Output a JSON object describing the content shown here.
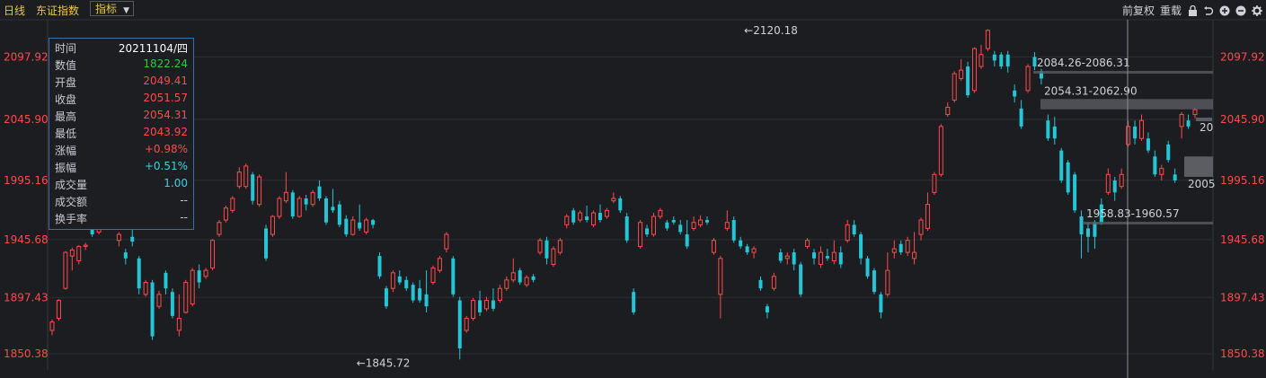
{
  "toolbar": {
    "tab_day": "日线",
    "index_name": "东证指数",
    "indicator": "指标",
    "adjust": "前复权",
    "redraw": "重载",
    "icons": [
      "lock-icon",
      "undo-icon",
      "zoom-in-icon",
      "zoom-out-icon",
      "gear-icon"
    ]
  },
  "info": {
    "rows": [
      {
        "label": "时间",
        "value": "20211104/四",
        "color": "#ffffff"
      },
      {
        "label": "数值",
        "value": "1822.24",
        "color": "#2ec842"
      },
      {
        "label": "开盘",
        "value": "2049.41",
        "color": "#ff4a4a"
      },
      {
        "label": "收盘",
        "value": "2051.57",
        "color": "#ff4a4a"
      },
      {
        "label": "最高",
        "value": "2054.31",
        "color": "#ff4a4a"
      },
      {
        "label": "最低",
        "value": "2043.92",
        "color": "#ff4a4a"
      },
      {
        "label": "涨幅",
        "value": "+0.98%",
        "color": "#ff4a4a"
      },
      {
        "label": "振幅",
        "value": "+0.51%",
        "color": "#3fd0e0"
      },
      {
        "label": "成交量",
        "value": "1.00",
        "color": "#3fd0e0"
      },
      {
        "label": "成交额",
        "value": "--",
        "color": "#c8cbd1"
      },
      {
        "label": "换手率",
        "value": "--",
        "color": "#c8cbd1"
      }
    ]
  },
  "colors": {
    "up": "#ff4a4a",
    "down": "#24c5d6",
    "axis_label": "#ff4a4a",
    "grid": "#2c2e33",
    "annotation": "#d0d2d6"
  },
  "chart_data": {
    "type": "candlestick",
    "y_ticks": [
      1850.38,
      1897.43,
      1945.68,
      1995.16,
      2045.9,
      2097.92
    ],
    "y_tick_labels": [
      "1850.38",
      "1897.43",
      "1945.68",
      "1995.16",
      "2045.90",
      "2097.92"
    ],
    "ylim": [
      1837,
      2129
    ],
    "annotations": [
      {
        "text": "←2120.18",
        "value": 2120.18,
        "index": 103
      },
      {
        "text": "←1845.72",
        "value": 1845.72,
        "index": 45
      }
    ],
    "zones": [
      {
        "text": "2084.26-2086.31",
        "low": 2084.26,
        "high": 2086.31
      },
      {
        "text": "2054.31-2062.90",
        "low": 2054.31,
        "high": 2062.9
      },
      {
        "text": "1958.83-1960.57",
        "low": 1958.83,
        "high": 1960.57
      }
    ],
    "edge_labels": [
      "20",
      "2005"
    ],
    "candles": [
      [
        1870,
        1877,
        1866,
        1879
      ],
      [
        1880,
        1895,
        1878,
        1896
      ],
      [
        1905,
        1935,
        1904,
        1936
      ],
      [
        1932,
        1937,
        1920,
        1939
      ],
      [
        1928,
        1940,
        1925,
        1941
      ],
      [
        1940,
        1941,
        1937,
        1943
      ],
      [
        1955,
        1950,
        1948,
        1956
      ],
      [
        1952,
        1965,
        1950,
        1966
      ],
      [
        1965,
        1970,
        1963,
        1972
      ],
      [
        1968,
        1962,
        1958,
        1970
      ],
      [
        1945,
        1950,
        1940,
        1952
      ],
      [
        1935,
        1930,
        1925,
        1938
      ],
      [
        1948,
        1944,
        1940,
        1960
      ],
      [
        1930,
        1905,
        1900,
        1932
      ],
      [
        1900,
        1910,
        1898,
        1912
      ],
      [
        1910,
        1865,
        1862,
        1912
      ],
      [
        1890,
        1900,
        1888,
        1903
      ],
      [
        1918,
        1905,
        1900,
        1920
      ],
      [
        1902,
        1882,
        1880,
        1905
      ],
      [
        1870,
        1880,
        1865,
        1900
      ],
      [
        1885,
        1910,
        1884,
        1912
      ],
      [
        1892,
        1920,
        1890,
        1922
      ],
      [
        1920,
        1910,
        1905,
        1925
      ],
      [
        1915,
        1920,
        1913,
        1922
      ],
      [
        1922,
        1945,
        1920,
        1946
      ],
      [
        1950,
        1960,
        1948,
        1962
      ],
      [
        1962,
        1972,
        1960,
        1974
      ],
      [
        1970,
        1980,
        1968,
        1982
      ],
      [
        1990,
        2002,
        1988,
        2006
      ],
      [
        1990,
        2007,
        1988,
        2009
      ],
      [
        2000,
        1978,
        1975,
        2002
      ],
      [
        1975,
        1998,
        1973,
        2000
      ],
      [
        1955,
        1930,
        1928,
        1958
      ],
      [
        1950,
        1965,
        1948,
        1966
      ],
      [
        1965,
        1980,
        1963,
        1982
      ],
      [
        1978,
        1985,
        1976,
        2002
      ],
      [
        1985,
        1965,
        1963,
        1987
      ],
      [
        1965,
        1980,
        1964,
        1982
      ],
      [
        1980,
        1975,
        1970,
        1983
      ],
      [
        1975,
        1985,
        1973,
        1987
      ],
      [
        1990,
        1980,
        1978,
        1995
      ],
      [
        1980,
        1960,
        1958,
        1982
      ],
      [
        1973,
        1970,
        1968,
        1988
      ],
      [
        1975,
        1958,
        1956,
        1978
      ],
      [
        1963,
        1950,
        1948,
        1966
      ],
      [
        1950,
        1962,
        1949,
        1965
      ],
      [
        1960,
        1955,
        1953,
        1975
      ],
      [
        1952,
        1962,
        1950,
        1964
      ],
      [
        1962,
        1958,
        1955,
        1963
      ],
      [
        1932,
        1915,
        1913,
        1935
      ],
      [
        1905,
        1890,
        1888,
        1907
      ],
      [
        1905,
        1918,
        1902,
        1920
      ],
      [
        1915,
        1910,
        1908,
        1920
      ],
      [
        1912,
        1905,
        1903,
        1915
      ],
      [
        1908,
        1895,
        1893,
        1910
      ],
      [
        1905,
        1895,
        1893,
        1912
      ],
      [
        1900,
        1890,
        1885,
        1920
      ],
      [
        1910,
        1922,
        1908,
        1924
      ],
      [
        1920,
        1930,
        1918,
        1932
      ],
      [
        1938,
        1950,
        1935,
        1952
      ],
      [
        1930,
        1900,
        1898,
        1932
      ],
      [
        1895,
        1855,
        1845.72,
        1898
      ],
      [
        1870,
        1880,
        1868,
        1882
      ],
      [
        1880,
        1895,
        1878,
        1897
      ],
      [
        1895,
        1885,
        1882,
        1903
      ],
      [
        1888,
        1895,
        1886,
        1898
      ],
      [
        1895,
        1888,
        1886,
        1905
      ],
      [
        1895,
        1905,
        1893,
        1908
      ],
      [
        1905,
        1912,
        1903,
        1915
      ],
      [
        1912,
        1918,
        1910,
        1930
      ],
      [
        1920,
        1910,
        1908,
        1922
      ],
      [
        1908,
        1914,
        1906,
        1916
      ],
      [
        1915,
        1912,
        1910,
        1917
      ],
      [
        1935,
        1945,
        1933,
        1947
      ],
      [
        1945,
        1930,
        1925,
        1948
      ],
      [
        1925,
        1938,
        1923,
        1940
      ],
      [
        1935,
        1945,
        1933,
        1947
      ],
      [
        1958,
        1965,
        1955,
        1967
      ],
      [
        1970,
        1960,
        1958,
        1972
      ],
      [
        1962,
        1968,
        1960,
        1970
      ],
      [
        1965,
        1962,
        1960,
        1974
      ],
      [
        1958,
        1968,
        1956,
        1970
      ],
      [
        1968,
        1962,
        1960,
        1975
      ],
      [
        1965,
        1970,
        1963,
        1972
      ],
      [
        1978,
        1980,
        1976,
        1985
      ],
      [
        1980,
        1970,
        1968,
        1982
      ],
      [
        1965,
        1945,
        1943,
        1968
      ],
      [
        1902,
        1885,
        1883,
        1905
      ],
      [
        1940,
        1960,
        1938,
        1962
      ],
      [
        1955,
        1950,
        1948,
        1958
      ],
      [
        1950,
        1965,
        1948,
        1968
      ],
      [
        1965,
        1970,
        1963,
        1972
      ],
      [
        1960,
        1955,
        1953,
        1962
      ],
      [
        1962,
        1960,
        1958,
        1965
      ],
      [
        1958,
        1952,
        1950,
        1962
      ],
      [
        1950,
        1940,
        1938,
        1962
      ],
      [
        1955,
        1960,
        1953,
        1965
      ],
      [
        1958,
        1962,
        1956,
        1966
      ],
      [
        1962,
        1960,
        1958,
        1965
      ],
      [
        1935,
        1945,
        1933,
        1947
      ],
      [
        1900,
        1930,
        1880,
        1932
      ],
      [
        1955,
        1960,
        1953,
        1970
      ],
      [
        1962,
        1945,
        1943,
        1965
      ],
      [
        1945,
        1940,
        1938,
        1948
      ],
      [
        1940,
        1935,
        1933,
        1942
      ],
      [
        1935,
        1938,
        1930,
        1940
      ],
      [
        1912,
        1905,
        1903,
        1915
      ],
      [
        1890,
        1885,
        1880,
        1892
      ],
      [
        1905,
        1915,
        1903,
        1918
      ],
      [
        1935,
        1928,
        1926,
        1938
      ],
      [
        1930,
        1932,
        1925,
        1935
      ],
      [
        1935,
        1925,
        1920,
        1938
      ],
      [
        1925,
        1900,
        1898,
        1927
      ],
      [
        1940,
        1945,
        1938,
        1947
      ],
      [
        1935,
        1930,
        1925,
        1938
      ],
      [
        1925,
        1935,
        1922,
        1940
      ],
      [
        1932,
        1930,
        1928,
        1938
      ],
      [
        1928,
        1935,
        1925,
        1945
      ],
      [
        1935,
        1925,
        1922,
        1940
      ],
      [
        1945,
        1958,
        1943,
        1962
      ],
      [
        1958,
        1950,
        1948,
        1962
      ],
      [
        1950,
        1930,
        1925,
        1952
      ],
      [
        1930,
        1915,
        1913,
        1932
      ],
      [
        1920,
        1902,
        1900,
        1922
      ],
      [
        1900,
        1885,
        1880,
        1902
      ],
      [
        1900,
        1920,
        1898,
        1935
      ],
      [
        1935,
        1938,
        1930,
        1945
      ],
      [
        1942,
        1935,
        1933,
        1945
      ],
      [
        1935,
        1945,
        1932,
        1948
      ],
      [
        1930,
        1935,
        1925,
        1952
      ],
      [
        1950,
        1962,
        1945,
        1964
      ],
      [
        1955,
        1975,
        1953,
        1985
      ],
      [
        1985,
        2000,
        1983,
        2002
      ],
      [
        2000,
        2040,
        1998,
        2042
      ],
      [
        2050,
        2056,
        2048,
        2060
      ],
      [
        2062,
        2084,
        2060,
        2086
      ],
      [
        2080,
        2087,
        2078,
        2096
      ],
      [
        2090,
        2066,
        2064,
        2094
      ],
      [
        2070,
        2105,
        2068,
        2106
      ],
      [
        2090,
        2100,
        2088,
        2108
      ],
      [
        2105,
        2120.18,
        2103,
        2121
      ],
      [
        2100,
        2095,
        2090,
        2103
      ],
      [
        2100,
        2090,
        2088,
        2102
      ],
      [
        2100,
        2090,
        2085,
        2103
      ],
      [
        2070,
        2065,
        2060,
        2075
      ],
      [
        2055,
        2040,
        2038,
        2062
      ],
      [
        2070,
        2090,
        2068,
        2092
      ],
      [
        2098,
        2090,
        2087,
        2102
      ],
      [
        2086,
        2080,
        2075,
        2088
      ],
      [
        2045,
        2030,
        2028,
        2050
      ],
      [
        2040,
        2030,
        2025,
        2048
      ],
      [
        2020,
        1995,
        1993,
        2022
      ],
      [
        2010,
        1985,
        1983,
        2012
      ],
      [
        2000,
        1970,
        1968,
        2002
      ],
      [
        1965,
        1950,
        1930,
        1970
      ],
      [
        1955,
        1948,
        1935,
        1960
      ],
      [
        1960,
        1948,
        1938,
        1962
      ],
      [
        1975,
        1960,
        1958,
        1980
      ],
      [
        1985,
        2000,
        1983,
        2005
      ],
      [
        1995,
        1985,
        1978,
        1998
      ],
      [
        1990,
        2000,
        1988,
        2005
      ],
      [
        2025,
        2040,
        2023,
        2045
      ],
      [
        2040,
        2030,
        2025,
        2045
      ],
      [
        2030,
        2045,
        2028,
        2050
      ],
      [
        2030,
        2020,
        2018,
        2035
      ],
      [
        2015,
        2000,
        1998,
        2020
      ],
      [
        2000,
        2005,
        1995,
        2008
      ],
      [
        2025,
        2012,
        2010,
        2028
      ],
      [
        2000,
        1995,
        1993,
        2005
      ],
      [
        2040,
        2050,
        2030,
        2052
      ],
      [
        2045,
        2040,
        2038,
        2050
      ],
      [
        2050,
        2054,
        2047,
        2056
      ]
    ]
  }
}
